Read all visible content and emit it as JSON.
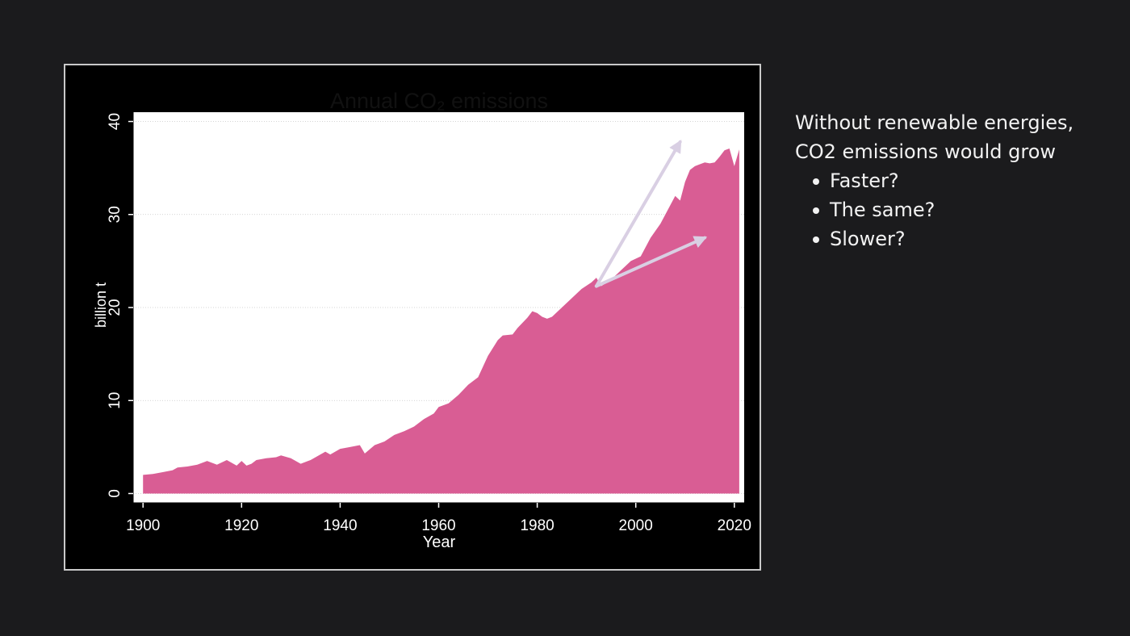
{
  "colors": {
    "background": "#1b1b1d",
    "plot_fill": "#d95d94",
    "arrow": "#d9cfe3",
    "text": "#f2f2f2"
  },
  "chart_data": {
    "type": "area",
    "title": "Annual CO₂ emissions",
    "xlabel": "Year",
    "ylabel": "billion t",
    "xlim": [
      1898,
      2022
    ],
    "ylim": [
      -1,
      41
    ],
    "xticks": [
      1900,
      1920,
      1940,
      1960,
      1980,
      2000,
      2020
    ],
    "yticks": [
      0,
      10,
      20,
      30,
      40
    ],
    "grid": true,
    "series": [
      {
        "x": [
          1900,
          1902,
          1904,
          1906,
          1907,
          1909,
          1911,
          1913,
          1915,
          1917,
          1919,
          1920,
          1921,
          1922,
          1923,
          1925,
          1927,
          1928,
          1930,
          1932,
          1934,
          1937,
          1938,
          1940,
          1942,
          1944,
          1945,
          1947,
          1949,
          1951,
          1953,
          1955,
          1957,
          1959,
          1960,
          1962,
          1964,
          1966,
          1968,
          1970,
          1972,
          1973,
          1975,
          1976,
          1978,
          1979,
          1980,
          1981,
          1982,
          1983,
          1985,
          1987,
          1989,
          1991,
          1992,
          1993,
          1995,
          1997,
          1999,
          2001,
          2003,
          2005,
          2007,
          2008,
          2009,
          2010,
          2011,
          2012,
          2013,
          2014,
          2015,
          2016,
          2017,
          2018,
          2019,
          2020,
          2021
        ],
        "y": [
          2.0,
          2.1,
          2.3,
          2.5,
          2.8,
          2.9,
          3.1,
          3.5,
          3.1,
          3.6,
          3.0,
          3.5,
          3.0,
          3.2,
          3.6,
          3.8,
          3.9,
          4.1,
          3.8,
          3.2,
          3.6,
          4.5,
          4.2,
          4.8,
          5.0,
          5.2,
          4.3,
          5.2,
          5.6,
          6.3,
          6.7,
          7.2,
          8.0,
          8.6,
          9.3,
          9.7,
          10.6,
          11.7,
          12.5,
          14.8,
          16.5,
          17.0,
          17.1,
          17.8,
          18.9,
          19.6,
          19.4,
          19.0,
          18.8,
          19.0,
          20.0,
          21.0,
          22.0,
          22.7,
          23.2,
          22.3,
          23.0,
          24.0,
          25.0,
          25.5,
          27.5,
          29.0,
          31.0,
          32.0,
          31.5,
          33.5,
          34.8,
          35.2,
          35.4,
          35.6,
          35.5,
          35.6,
          36.2,
          36.9,
          37.1,
          35.2,
          37.0
        ]
      }
    ],
    "annotations": [
      {
        "type": "arrow",
        "from": [
          1992,
          22.3
        ],
        "to": [
          2009,
          37.8
        ]
      },
      {
        "type": "arrow",
        "from": [
          1992,
          22.3
        ],
        "to": [
          2014,
          27.5
        ]
      }
    ]
  },
  "side_text": {
    "line1": "Without renewable energies,",
    "line2": "CO2 emissions would grow",
    "options": [
      "Faster?",
      "The same?",
      "Slower?"
    ]
  }
}
